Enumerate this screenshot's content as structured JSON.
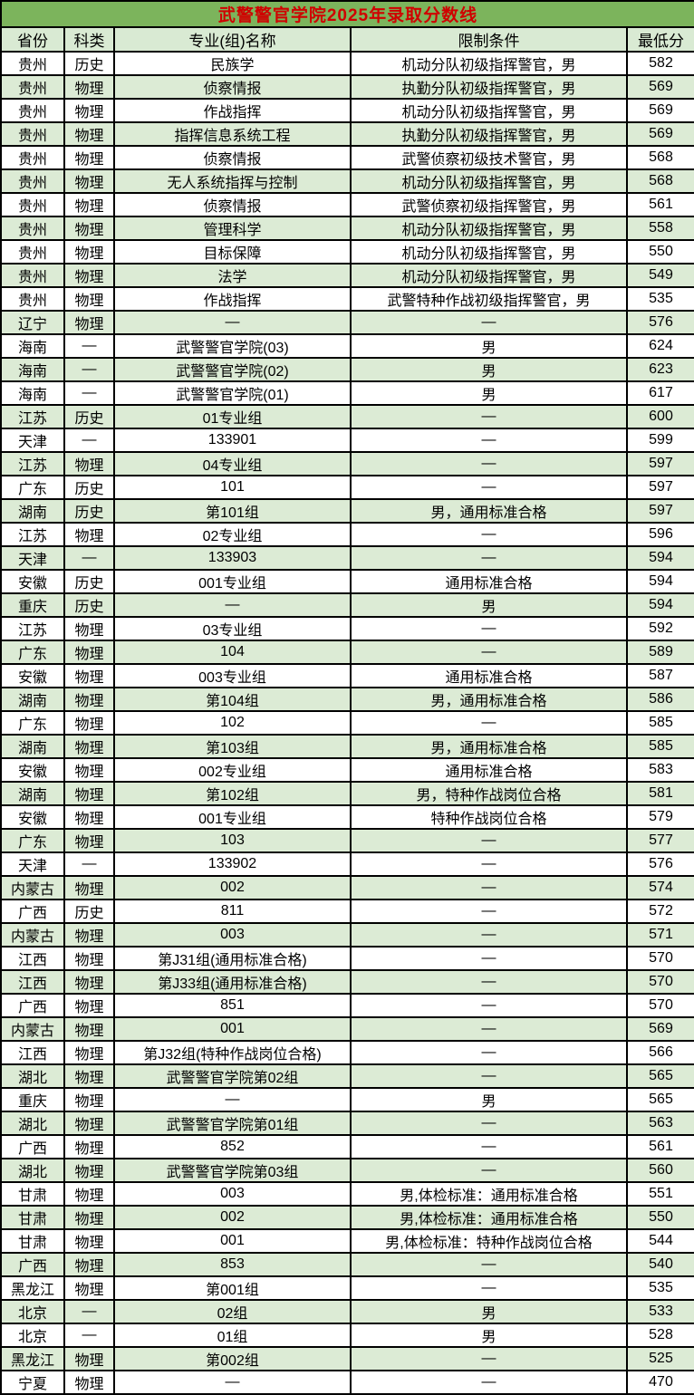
{
  "title": "武警警官学院2025年录取分数线",
  "colors": {
    "title_bg": "#7cb45c",
    "title_text": "#d00000",
    "header_bg": "#d9ead3",
    "row_alt_bg": "#dcebd5",
    "border_color": "#000000",
    "text_color": "#000000"
  },
  "table": {
    "headers": [
      "省份",
      "科类",
      "专业(组)名称",
      "限制条件",
      "最低分"
    ],
    "rows": [
      [
        "贵州",
        "历史",
        "民族学",
        "机动分队初级指挥警官，男",
        582
      ],
      [
        "贵州",
        "物理",
        "侦察情报",
        "执勤分队初级指挥警官，男",
        569
      ],
      [
        "贵州",
        "物理",
        "作战指挥",
        "机动分队初级指挥警官，男",
        569
      ],
      [
        "贵州",
        "物理",
        "指挥信息系统工程",
        "执勤分队初级指挥警官，男",
        569
      ],
      [
        "贵州",
        "物理",
        "侦察情报",
        "武警侦察初级技术警官，男",
        568
      ],
      [
        "贵州",
        "物理",
        "无人系统指挥与控制",
        "机动分队初级指挥警官，男",
        568
      ],
      [
        "贵州",
        "物理",
        "侦察情报",
        "武警侦察初级指挥警官，男",
        561
      ],
      [
        "贵州",
        "物理",
        "管理科学",
        "机动分队初级指挥警官，男",
        558
      ],
      [
        "贵州",
        "物理",
        "目标保障",
        "机动分队初级指挥警官，男",
        550
      ],
      [
        "贵州",
        "物理",
        "法学",
        "机动分队初级指挥警官，男",
        549
      ],
      [
        "贵州",
        "物理",
        "作战指挥",
        "武警特种作战初级指挥警官，男",
        535
      ],
      [
        "辽宁",
        "物理",
        "—",
        "—",
        576
      ],
      [
        "海南",
        "—",
        "武警警官学院(03)",
        "男",
        624
      ],
      [
        "海南",
        "—",
        "武警警官学院(02)",
        "男",
        623
      ],
      [
        "海南",
        "—",
        "武警警官学院(01)",
        "男",
        617
      ],
      [
        "江苏",
        "历史",
        "01专业组",
        "—",
        600
      ],
      [
        "天津",
        "—",
        "133901",
        "—",
        599
      ],
      [
        "江苏",
        "物理",
        "04专业组",
        "—",
        597
      ],
      [
        "广东",
        "历史",
        "101",
        "—",
        597
      ],
      [
        "湖南",
        "历史",
        "第101组",
        "男，通用标准合格",
        597
      ],
      [
        "江苏",
        "物理",
        "02专业组",
        "—",
        596
      ],
      [
        "天津",
        "—",
        "133903",
        "—",
        594
      ],
      [
        "安徽",
        "历史",
        "001专业组",
        "通用标准合格",
        594
      ],
      [
        "重庆",
        "历史",
        "—",
        "男",
        594
      ],
      [
        "江苏",
        "物理",
        "03专业组",
        "—",
        592
      ],
      [
        "广东",
        "物理",
        "104",
        "—",
        589
      ],
      [
        "安徽",
        "物理",
        "003专业组",
        "通用标准合格",
        587
      ],
      [
        "湖南",
        "物理",
        "第104组",
        "男，通用标准合格",
        586
      ],
      [
        "广东",
        "物理",
        "102",
        "—",
        585
      ],
      [
        "湖南",
        "物理",
        "第103组",
        "男，通用标准合格",
        585
      ],
      [
        "安徽",
        "物理",
        "002专业组",
        "通用标准合格",
        583
      ],
      [
        "湖南",
        "物理",
        "第102组",
        "男，特种作战岗位合格",
        581
      ],
      [
        "安徽",
        "物理",
        "001专业组",
        "特种作战岗位合格",
        579
      ],
      [
        "广东",
        "物理",
        "103",
        "—",
        577
      ],
      [
        "天津",
        "—",
        "133902",
        "—",
        576
      ],
      [
        "内蒙古",
        "物理",
        "002",
        "—",
        574
      ],
      [
        "广西",
        "历史",
        "811",
        "—",
        572
      ],
      [
        "内蒙古",
        "物理",
        "003",
        "—",
        571
      ],
      [
        "江西",
        "物理",
        "第J31组(通用标准合格)",
        "—",
        570
      ],
      [
        "江西",
        "物理",
        "第J33组(通用标准合格)",
        "—",
        570
      ],
      [
        "广西",
        "物理",
        "851",
        "—",
        570
      ],
      [
        "内蒙古",
        "物理",
        "001",
        "—",
        569
      ],
      [
        "江西",
        "物理",
        "第J32组(特种作战岗位合格)",
        "—",
        566
      ],
      [
        "湖北",
        "物理",
        "武警警官学院第02组",
        "—",
        565
      ],
      [
        "重庆",
        "物理",
        "—",
        "男",
        565
      ],
      [
        "湖北",
        "物理",
        "武警警官学院第01组",
        "—",
        563
      ],
      [
        "广西",
        "物理",
        "852",
        "—",
        561
      ],
      [
        "湖北",
        "物理",
        "武警警官学院第03组",
        "—",
        560
      ],
      [
        "甘肃",
        "物理",
        "003",
        "男,体检标准：通用标准合格",
        551
      ],
      [
        "甘肃",
        "物理",
        "002",
        "男,体检标准：通用标准合格",
        550
      ],
      [
        "甘肃",
        "物理",
        "001",
        "男,体检标准：特种作战岗位合格",
        544
      ],
      [
        "广西",
        "物理",
        "853",
        "—",
        540
      ],
      [
        "黑龙江",
        "物理",
        "第001组",
        "—",
        535
      ],
      [
        "北京",
        "—",
        "02组",
        "男",
        533
      ],
      [
        "北京",
        "—",
        "01组",
        "男",
        528
      ],
      [
        "黑龙江",
        "物理",
        "第002组",
        "—",
        525
      ],
      [
        "宁夏",
        "物理",
        "—",
        "—",
        470
      ]
    ]
  }
}
